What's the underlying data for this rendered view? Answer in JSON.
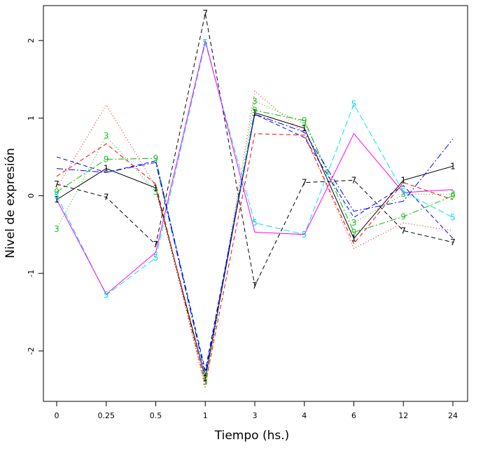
{
  "chart_data": {
    "type": "line",
    "title": "",
    "xlabel": "Tiempo (hs.)",
    "ylabel": "Nivel de expresión",
    "categories": [
      "0",
      "0.25",
      "0.5",
      "1",
      "3",
      "4",
      "6",
      "12",
      "24"
    ],
    "ylim": [
      -2.65,
      2.45
    ],
    "yticks": [
      -2,
      -1,
      0,
      1,
      2
    ],
    "grid": false,
    "legend": "none",
    "series": [
      {
        "label": "1",
        "color": "#000000",
        "dash": "solid",
        "labeled": true,
        "values": [
          -0.05,
          0.35,
          0.1,
          -2.35,
          1.07,
          0.87,
          -0.55,
          0.2,
          0.38
        ]
      },
      {
        "label": "7",
        "color": "#000000",
        "dash": "6,4",
        "labeled": true,
        "values": [
          0.15,
          -0.02,
          -0.63,
          2.35,
          -1.16,
          0.17,
          0.2,
          -0.45,
          -0.6
        ]
      },
      {
        "label": "3",
        "color": "#00bb00",
        "dash": "1,3",
        "labeled": true,
        "values": [
          -0.43,
          0.77,
          0.05,
          -2.4,
          1.22,
          0.93,
          -0.35,
          0.02,
          0.02
        ]
      },
      {
        "label": "9",
        "color": "#00bb00",
        "dash": "9,3,2,3",
        "labeled": true,
        "values": [
          0.05,
          0.47,
          0.48,
          -2.3,
          1.1,
          0.97,
          -0.47,
          -0.27,
          0.0
        ]
      },
      {
        "label": "5",
        "color": "#00e5ee",
        "dash": "9,4",
        "labeled": true,
        "values": [
          0.0,
          -1.28,
          -0.8,
          1.97,
          -0.35,
          -0.5,
          1.18,
          0.05,
          -0.28
        ]
      },
      {
        "label": "",
        "color": "#ff00ff",
        "dash": "solid",
        "labeled": false,
        "values": [
          -0.05,
          -1.27,
          -0.73,
          2.0,
          -0.47,
          -0.5,
          0.8,
          0.04,
          0.08
        ]
      },
      {
        "label": "",
        "color": "#ff0000",
        "dash": "1,3",
        "labeled": false,
        "values": [
          0.1,
          1.17,
          0.12,
          -2.48,
          1.35,
          0.8,
          -0.68,
          -0.35,
          -0.45
        ]
      },
      {
        "label": "",
        "color": "#ff0000",
        "dash": "6,4",
        "labeled": false,
        "values": [
          0.25,
          0.67,
          0.15,
          -2.43,
          0.8,
          0.78,
          -0.62,
          0.17,
          -0.05
        ]
      },
      {
        "label": "",
        "color": "#0000ff",
        "dash": "9,3,2,3",
        "labeled": false,
        "values": [
          0.35,
          0.3,
          0.43,
          -2.3,
          1.05,
          0.82,
          -0.2,
          -0.07,
          0.73
        ]
      },
      {
        "label": "",
        "color": "#0000ff",
        "dash": "6,4",
        "labeled": false,
        "values": [
          0.5,
          0.3,
          0.45,
          -2.25,
          1.05,
          0.75,
          -0.28,
          0.13,
          -0.55
        ]
      }
    ]
  }
}
